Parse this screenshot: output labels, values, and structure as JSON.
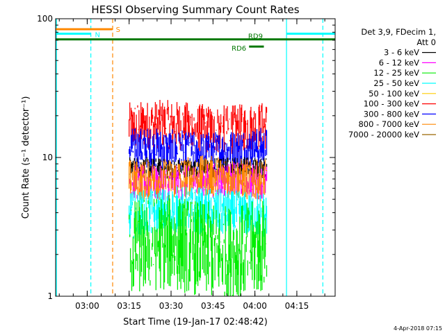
{
  "chart_data": {
    "type": "line",
    "title": "HESSI Observing Summary Count Rates",
    "xlabel": "Start Time (19-Jan-17 02:48:42)",
    "ylabel": "Count Rate (s⁻¹ detector⁻¹)",
    "yscale": "log",
    "ylim": [
      1,
      100
    ],
    "xlim_minutes_after_start": [
      0,
      100
    ],
    "x_ticks": [
      {
        "label": "03:00",
        "minute": 11.3
      },
      {
        "label": "03:15",
        "minute": 26.3
      },
      {
        "label": "03:30",
        "minute": 41.3
      },
      {
        "label": "03:45",
        "minute": 56.3
      },
      {
        "label": "04:00",
        "minute": 71.3
      },
      {
        "label": "04:15",
        "minute": 86.3
      }
    ],
    "y_ticks": [
      {
        "label": "1",
        "value": 1
      },
      {
        "label": "10",
        "value": 10
      },
      {
        "label": "100",
        "value": 100
      }
    ],
    "legend": {
      "placement": "right",
      "header": [
        "Det 3,9, FDecim 1,",
        "Att 0"
      ],
      "entries": [
        {
          "label": "3 - 6 keV",
          "color": "#000000"
        },
        {
          "label": "6 - 12 keV",
          "color": "#ff00ff"
        },
        {
          "label": "12 - 25 keV",
          "color": "#00ee00"
        },
        {
          "label": "25 - 50 keV",
          "color": "#00ffff"
        },
        {
          "label": "50 - 100 keV",
          "color": "#ffcc00"
        },
        {
          "label": "100 - 300 keV",
          "color": "#ff0000"
        },
        {
          "label": "300 - 800 keV",
          "color": "#0000ff"
        },
        {
          "label": "800 - 7000 keV",
          "color": "#ff8800"
        },
        {
          "label": "7000 - 20000 keV",
          "color": "#996600"
        }
      ]
    },
    "series_summary": [
      {
        "label": "100 - 300 keV",
        "approx_range": [
          11,
          25
        ]
      },
      {
        "label": "300 - 800 keV",
        "approx_range": [
          8,
          16
        ]
      },
      {
        "label": "3 - 6 keV",
        "approx_range": [
          7,
          10
        ]
      },
      {
        "label": "6 - 12 keV",
        "approx_range": [
          5,
          9
        ]
      },
      {
        "label": "800 - 7000 keV",
        "approx_range": [
          5,
          10
        ]
      },
      {
        "label": "25 - 50 keV",
        "approx_range": [
          2.7,
          6
        ]
      },
      {
        "label": "12 - 25 keV",
        "approx_range": [
          1,
          5
        ]
      }
    ],
    "data_interval_minutes": [
      26.3,
      75.5
    ],
    "flag_bars": [
      {
        "label": "S",
        "color": "#ff8800",
        "start_minute": 0,
        "end_minute": 20.3,
        "value": 84
      },
      {
        "label": "N",
        "color": "#00ffff",
        "start_minute": 0,
        "end_minute": 12.5,
        "value": 78
      },
      {
        "label": "N",
        "color": "#00ffff",
        "start_minute": 82.5,
        "end_minute": 100,
        "value": 78
      },
      {
        "label": "RD9",
        "color": "#007700",
        "start_minute": 0,
        "end_minute": 100,
        "value": 71
      },
      {
        "label": "RD6",
        "color": "#007700",
        "start_minute": 69.2,
        "end_minute": 74.5,
        "value": 63
      }
    ],
    "vertical_markers": [
      {
        "color": "#00ffff",
        "style": "solid",
        "minute": 0.3
      },
      {
        "color": "#00ffff",
        "style": "dashed",
        "minute": 12.6
      },
      {
        "color": "#ff8800",
        "style": "dashed",
        "minute": 20.4
      },
      {
        "color": "#00ffff",
        "style": "solid",
        "minute": 82.6
      },
      {
        "color": "#00ffff",
        "style": "dashed",
        "minute": 95.6
      }
    ]
  },
  "footer": {
    "date_stamp": "4-Apr-2018 07:15"
  }
}
